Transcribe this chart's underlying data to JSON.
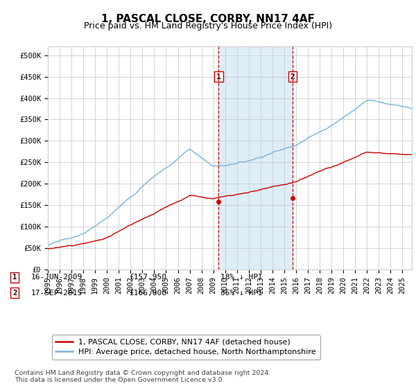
{
  "title": "1, PASCAL CLOSE, CORBY, NN17 4AF",
  "subtitle": "Price paid vs. HM Land Registry's House Price Index (HPI)",
  "ylabel_ticks": [
    "£0",
    "£50K",
    "£100K",
    "£150K",
    "£200K",
    "£250K",
    "£300K",
    "£350K",
    "£400K",
    "£450K",
    "£500K"
  ],
  "ytick_values": [
    0,
    50000,
    100000,
    150000,
    200000,
    250000,
    300000,
    350000,
    400000,
    450000,
    500000
  ],
  "ylim": [
    0,
    520000
  ],
  "xlim_start": 1995.0,
  "xlim_end": 2025.8,
  "hpi_color": "#7ab3d9",
  "price_color": "#cc0000",
  "sale1_x": 2009.46,
  "sale1_y": 157950,
  "sale1_label": "1",
  "sale1_date": "16-JUN-2009",
  "sale1_price": "£157,950",
  "sale1_note": "18% ↓ HPI",
  "sale2_x": 2015.71,
  "sale2_y": 166000,
  "sale2_label": "2",
  "sale2_date": "17-SEP-2015",
  "sale2_price": "£166,000",
  "sale2_note": "35% ↓ HPI",
  "legend_line1": "1, PASCAL CLOSE, CORBY, NN17 4AF (detached house)",
  "legend_line2": "HPI: Average price, detached house, North Northamptonshire",
  "footnote": "Contains HM Land Registry data © Crown copyright and database right 2024.\nThis data is licensed under the Open Government Licence v3.0.",
  "highlight_color": "#ddeef8",
  "vline_color": "#cc0000",
  "marker_color": "#cc0000",
  "grid_color": "#cccccc",
  "background_color": "#ffffff",
  "title_fontsize": 11,
  "subtitle_fontsize": 9,
  "tick_fontsize": 7.5,
  "legend_fontsize": 8,
  "footnote_fontsize": 6.8
}
